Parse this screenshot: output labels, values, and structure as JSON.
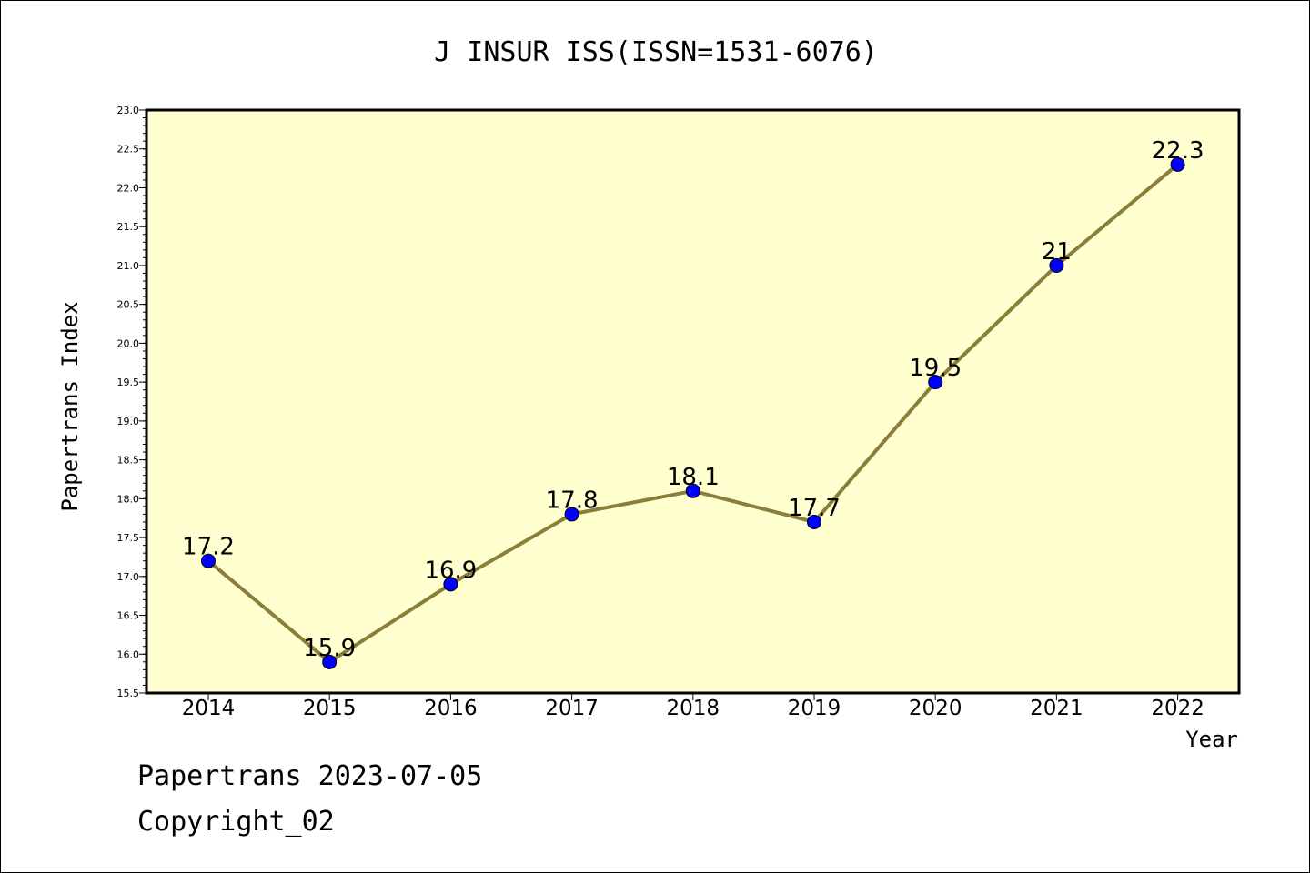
{
  "chart_data": {
    "type": "line",
    "title": "J INSUR ISS(ISSN=1531-6076)",
    "xlabel": "Year",
    "ylabel": "Papertrans Index",
    "categories": [
      "2014",
      "2015",
      "2016",
      "2017",
      "2018",
      "2019",
      "2020",
      "2021",
      "2022"
    ],
    "values": [
      17.2,
      15.9,
      16.9,
      17.8,
      18.1,
      17.7,
      19.5,
      21,
      22.3
    ],
    "value_labels": [
      "17.2",
      "15.9",
      "16.9",
      "17.8",
      "18.1",
      "17.7",
      "19.5",
      "21",
      "22.3"
    ],
    "ylim": [
      15.5,
      23.0
    ],
    "y_ticks": [
      "15.5",
      "16.0",
      "16.5",
      "17.0",
      "17.5",
      "18.0",
      "18.5",
      "19.0",
      "19.5",
      "20.0",
      "20.5",
      "21.0",
      "21.5",
      "22.0",
      "22.5",
      "23.0"
    ],
    "grid": false,
    "colors": {
      "plot_background": "#ffffd0",
      "line": "#8b7d3a",
      "marker": "#0000ff"
    }
  },
  "footer": {
    "date_line": "Papertrans 2023-07-05",
    "copyright": "Copyright_02"
  }
}
